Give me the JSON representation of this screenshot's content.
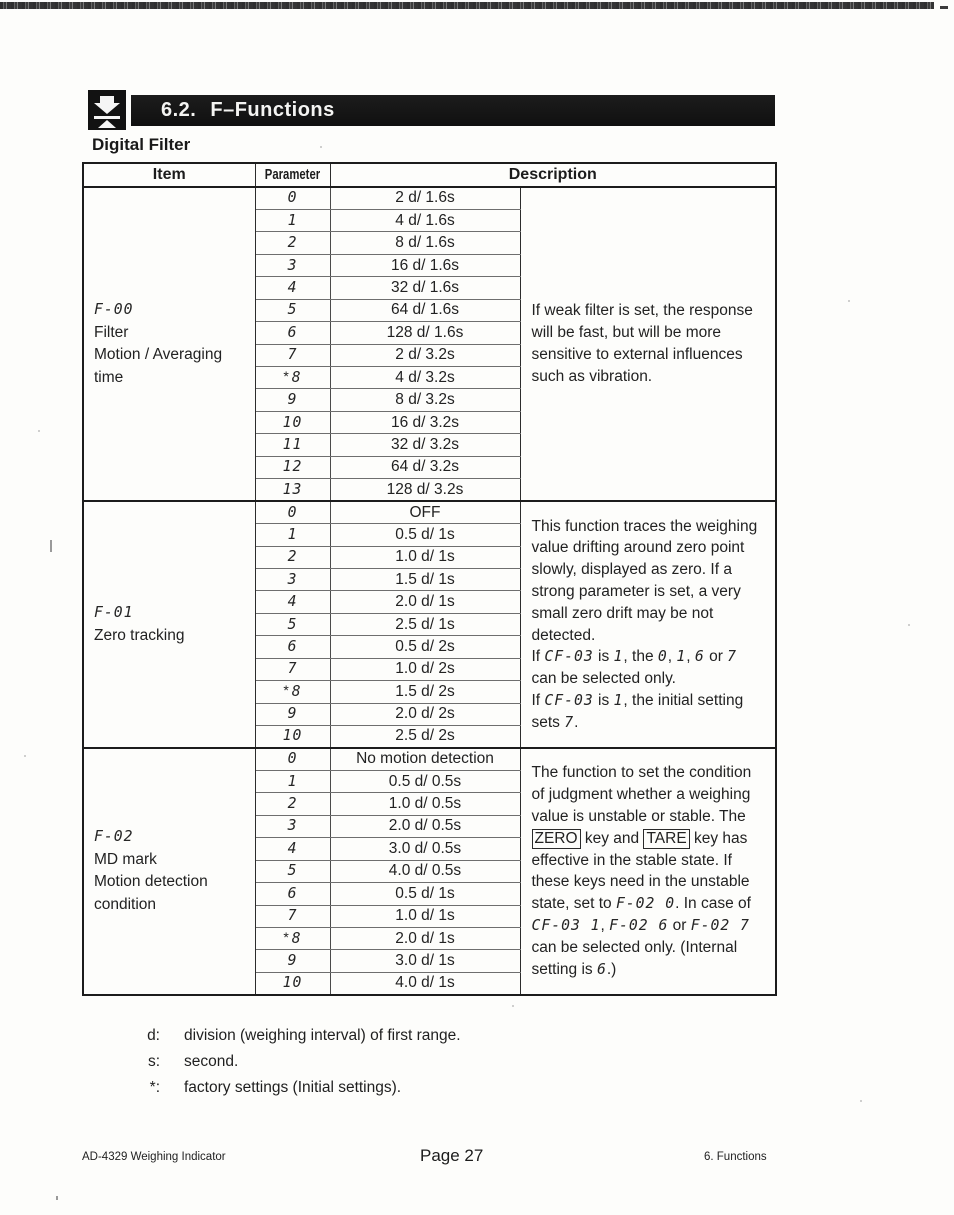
{
  "header": {
    "number": "6.2.",
    "name": "F–Functions",
    "icon": "press-key-icon"
  },
  "subtitle": "Digital Filter",
  "table": {
    "col_item": "Item",
    "col_parameter": "Parameter",
    "col_description": "Description",
    "groups": [
      {
        "code": "F-00",
        "item_lines": [
          "Filter",
          "Motion / Averaging",
          "time"
        ],
        "rows": [
          {
            "param": "0",
            "value": "2 d/ 1.6s"
          },
          {
            "param": "1",
            "value": "4 d/ 1.6s"
          },
          {
            "param": "2",
            "value": "8 d/ 1.6s"
          },
          {
            "param": "3",
            "value": "16 d/ 1.6s"
          },
          {
            "param": "4",
            "value": "32 d/ 1.6s"
          },
          {
            "param": "5",
            "value": "64 d/ 1.6s"
          },
          {
            "param": "6",
            "value": "128 d/ 1.6s"
          },
          {
            "param": "7",
            "value": "2 d/ 3.2s"
          },
          {
            "param": "8",
            "star": true,
            "value": "4 d/ 3.2s"
          },
          {
            "param": "9",
            "value": "8 d/ 3.2s"
          },
          {
            "param": "10",
            "value": "16 d/ 3.2s"
          },
          {
            "param": "11",
            "value": "32 d/ 3.2s"
          },
          {
            "param": "12",
            "value": "64 d/ 3.2s"
          },
          {
            "param": "13",
            "value": "128 d/ 3.2s"
          }
        ],
        "description": [
          [
            {
              "t": "If weak filter is set, the response will be fast, but will be more sensitive to external influences such as vibration."
            }
          ]
        ]
      },
      {
        "code": "F-01",
        "item_lines": [
          "Zero tracking"
        ],
        "rows": [
          {
            "param": "0",
            "value": "OFF"
          },
          {
            "param": "1",
            "value": "0.5 d/ 1s"
          },
          {
            "param": "2",
            "value": "1.0 d/ 1s"
          },
          {
            "param": "3",
            "value": "1.5 d/ 1s"
          },
          {
            "param": "4",
            "value": "2.0 d/ 1s"
          },
          {
            "param": "5",
            "value": "2.5 d/ 1s"
          },
          {
            "param": "6",
            "value": "0.5 d/ 2s"
          },
          {
            "param": "7",
            "value": "1.0 d/ 2s"
          },
          {
            "param": "8",
            "star": true,
            "value": "1.5 d/ 2s"
          },
          {
            "param": "9",
            "value": "2.0 d/ 2s"
          },
          {
            "param": "10",
            "value": "2.5 d/ 2s"
          }
        ],
        "description": [
          [
            {
              "t": "This function traces the weighing value drifting around zero point slowly, displayed as zero. If a strong parameter is set, a very small zero drift may be not detected."
            }
          ],
          [
            {
              "t": "If "
            },
            {
              "lcd": "CF-03"
            },
            {
              "t": " is "
            },
            {
              "lcd": "1"
            },
            {
              "t": ", the "
            },
            {
              "lcd": "0"
            },
            {
              "t": ", "
            },
            {
              "lcd": "1"
            },
            {
              "t": ", "
            },
            {
              "lcd": "6"
            },
            {
              "t": "  or "
            },
            {
              "lcd": "7"
            },
            {
              "t": " can be selected only."
            }
          ],
          [
            {
              "t": "If "
            },
            {
              "lcd": "CF-03"
            },
            {
              "t": " is "
            },
            {
              "lcd": "1"
            },
            {
              "t": ", the initial setting sets "
            },
            {
              "lcd": "7"
            },
            {
              "t": "."
            }
          ]
        ]
      },
      {
        "code": "F-02",
        "item_lines": [
          "MD mark",
          "Motion detection",
          "condition"
        ],
        "rows": [
          {
            "param": "0",
            "value": "No motion detection"
          },
          {
            "param": "1",
            "value": "0.5 d/ 0.5s"
          },
          {
            "param": "2",
            "value": "1.0 d/ 0.5s"
          },
          {
            "param": "3",
            "value": "2.0 d/ 0.5s"
          },
          {
            "param": "4",
            "value": "3.0 d/ 0.5s"
          },
          {
            "param": "5",
            "value": "4.0 d/ 0.5s"
          },
          {
            "param": "6",
            "value": "0.5 d/ 1s"
          },
          {
            "param": "7",
            "value": "1.0 d/ 1s"
          },
          {
            "param": "8",
            "star": true,
            "value": "2.0 d/ 1s"
          },
          {
            "param": "9",
            "value": "3.0 d/ 1s"
          },
          {
            "param": "10",
            "value": "4.0 d/ 1s"
          }
        ],
        "description": [
          [
            {
              "t": "The function to set the condition of judgment whether a weighing value is unstable or stable. The "
            },
            {
              "key": "ZERO"
            },
            {
              "t": " key and "
            },
            {
              "key": "TARE"
            },
            {
              "t": " key has effective in the stable state. If these keys need in the unstable state, set to "
            },
            {
              "lcd": "F-02 0"
            },
            {
              "t": ". In case of "
            },
            {
              "lcd": "CF-03 1"
            },
            {
              "t": ", "
            },
            {
              "lcd": "F-02 6"
            },
            {
              "t": " or "
            },
            {
              "lcd": "F-02 7"
            },
            {
              "t": " can be selected only. (Internal setting is "
            },
            {
              "lcd": "6"
            },
            {
              "t": ".)"
            }
          ]
        ]
      }
    ]
  },
  "footnotes": [
    {
      "label": "d:",
      "text": "division (weighing interval) of first range."
    },
    {
      "label": "s:",
      "text": "second."
    },
    {
      "label": "*:",
      "text": "factory settings (Initial settings)."
    }
  ],
  "footer": {
    "left": "AD-4329 Weighing Indicator",
    "center": "Page 27",
    "right": "6. Functions"
  }
}
